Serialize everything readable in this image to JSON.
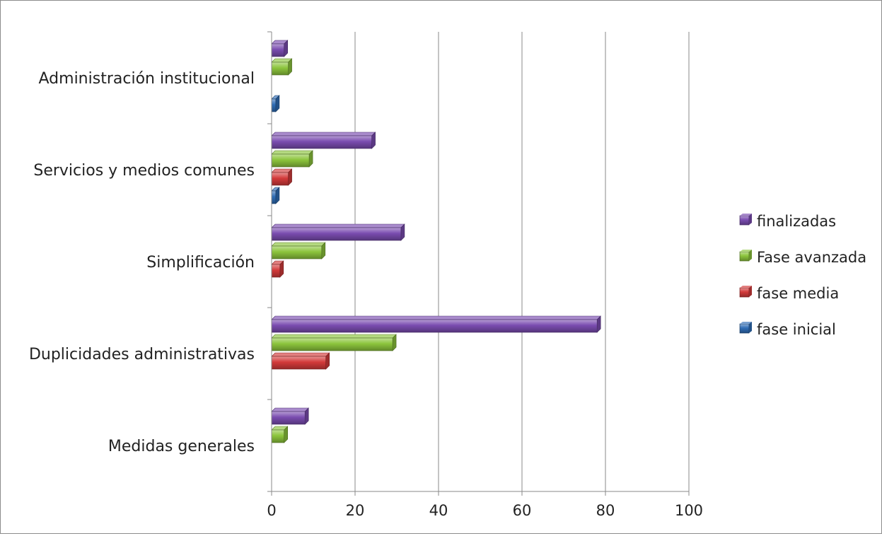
{
  "chart_data": {
    "type": "bar",
    "orientation": "horizontal",
    "categories": [
      "Medidas generales",
      "Duplicidades administrativas",
      "Simplificación",
      "Servicios y medios comunes",
      "Administración institucional"
    ],
    "series": [
      {
        "name": "fase inicial",
        "color": "#2f6db6",
        "values": [
          0,
          0,
          0,
          1,
          1
        ]
      },
      {
        "name": "fase media",
        "color": "#d33a3a",
        "values": [
          0,
          13,
          2,
          4,
          0
        ]
      },
      {
        "name": "Fase avanzada",
        "color": "#8cc43c",
        "values": [
          3,
          29,
          12,
          9,
          4
        ]
      },
      {
        "name": "finalizadas",
        "color": "#7a4cb0",
        "values": [
          8,
          78,
          31,
          24,
          3
        ]
      }
    ],
    "x_ticks": [
      "0",
      "20",
      "40",
      "60",
      "80",
      "100"
    ],
    "xlim": [
      0,
      100
    ],
    "grid": true,
    "legend_position": "right",
    "legend_order": [
      "finalizadas",
      "Fase avanzada",
      "fase media",
      "fase inicial"
    ],
    "bar_style": "3d"
  }
}
